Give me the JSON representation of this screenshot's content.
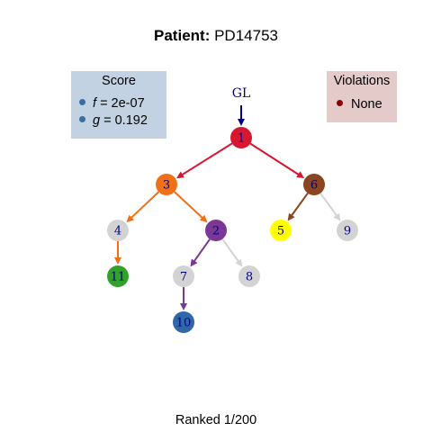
{
  "title": {
    "prefix": "Patient:",
    "patient_id": "PD14753"
  },
  "score": {
    "header": "Score",
    "f_label": "f",
    "f_value": "=  2e-07",
    "g_label": "g",
    "g_value": "=  0.192",
    "dot_color": "#3a6ea0"
  },
  "violations": {
    "header": "Violations",
    "items": [
      "None"
    ],
    "dot_color": "#8b0000"
  },
  "germline_label": "GL",
  "tree": {
    "nodes": [
      {
        "id": "1",
        "color": "#d7162f",
        "text_color": "#00008b"
      },
      {
        "id": "3",
        "color": "#f07018",
        "text_color": "#00008b"
      },
      {
        "id": "6",
        "color": "#8b4520",
        "text_color": "#00008b"
      },
      {
        "id": "4",
        "color": "#d3d3d3",
        "text_color": "#00008b"
      },
      {
        "id": "2",
        "color": "#7b3794",
        "text_color": "#00008b"
      },
      {
        "id": "5",
        "color": "#ffff00",
        "text_color": "#00008b"
      },
      {
        "id": "9",
        "color": "#d3d3d3",
        "text_color": "#00008b"
      },
      {
        "id": "11",
        "color": "#33a02c",
        "text_color": "#00008b"
      },
      {
        "id": "7",
        "color": "#d3d3d3",
        "text_color": "#00008b"
      },
      {
        "id": "8",
        "color": "#d3d3d3",
        "text_color": "#00008b"
      },
      {
        "id": "10",
        "color": "#2f67a8",
        "text_color": "#00008b"
      }
    ],
    "edges": [
      {
        "from": "GL",
        "to": "1",
        "color": "#00008b"
      },
      {
        "from": "1",
        "to": "3",
        "color": "#d7162f"
      },
      {
        "from": "1",
        "to": "6",
        "color": "#d7162f"
      },
      {
        "from": "3",
        "to": "4",
        "color": "#f07018"
      },
      {
        "from": "3",
        "to": "2",
        "color": "#f07018"
      },
      {
        "from": "6",
        "to": "5",
        "color": "#8b4520"
      },
      {
        "from": "6",
        "to": "9",
        "color": "#d3d3d3"
      },
      {
        "from": "4",
        "to": "11",
        "color": "#f07018"
      },
      {
        "from": "2",
        "to": "7",
        "color": "#7b3794"
      },
      {
        "from": "2",
        "to": "8",
        "color": "#d3d3d3"
      },
      {
        "from": "7",
        "to": "10",
        "color": "#7b3794"
      }
    ]
  },
  "footer": "Ranked 1/200"
}
